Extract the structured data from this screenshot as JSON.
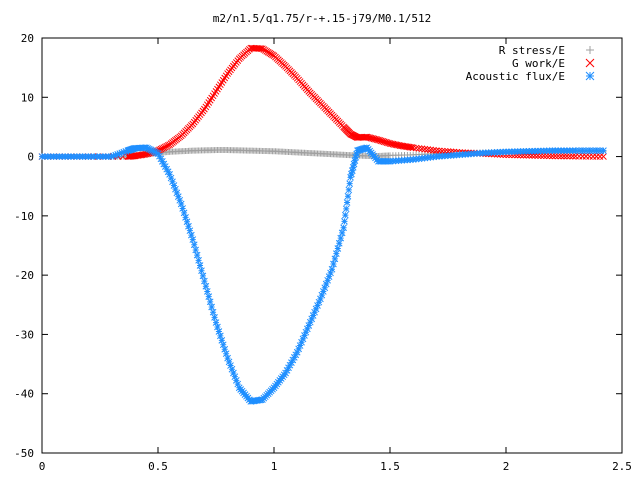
{
  "chart_data": {
    "type": "scatter",
    "title": "m2/n1.5/q1.75/r-+.15-j79/M0.1/512",
    "xlabel": "",
    "ylabel": "",
    "xlim": [
      0,
      2.5
    ],
    "ylim": [
      -50,
      20
    ],
    "x_ticks": [
      {
        "value": 0,
        "label": "0"
      },
      {
        "value": 0.5,
        "label": "0.5"
      },
      {
        "value": 1,
        "label": "1"
      },
      {
        "value": 1.5,
        "label": "1.5"
      },
      {
        "value": 2,
        "label": "2"
      },
      {
        "value": 2.5,
        "label": "2.5"
      }
    ],
    "y_ticks": [
      {
        "value": 20,
        "label": "20"
      },
      {
        "value": 10,
        "label": "10"
      },
      {
        "value": 0,
        "label": "0"
      },
      {
        "value": -10,
        "label": "-10"
      },
      {
        "value": -20,
        "label": "-20"
      },
      {
        "value": -30,
        "label": "-30"
      },
      {
        "value": -40,
        "label": "-40"
      },
      {
        "value": -50,
        "label": "-50"
      }
    ],
    "grid": false,
    "legend": "top-right",
    "series": [
      {
        "name": "R stress/E",
        "marker": "plus",
        "color": "#a0a0a0",
        "points": [
          [
            0.0,
            0
          ],
          [
            0.1,
            0
          ],
          [
            0.2,
            0
          ],
          [
            0.3,
            0
          ],
          [
            0.37,
            0
          ],
          [
            0.4,
            0.15
          ],
          [
            0.45,
            0.4
          ],
          [
            0.5,
            0.6
          ],
          [
            0.55,
            0.8
          ],
          [
            0.6,
            0.9
          ],
          [
            0.65,
            1.0
          ],
          [
            0.7,
            1.05
          ],
          [
            0.75,
            1.1
          ],
          [
            0.8,
            1.1
          ],
          [
            0.85,
            1.05
          ],
          [
            0.9,
            1.0
          ],
          [
            0.95,
            0.95
          ],
          [
            1.0,
            0.9
          ],
          [
            1.05,
            0.8
          ],
          [
            1.1,
            0.7
          ],
          [
            1.15,
            0.6
          ],
          [
            1.2,
            0.5
          ],
          [
            1.25,
            0.4
          ],
          [
            1.3,
            0.3
          ],
          [
            1.35,
            0.2
          ],
          [
            1.4,
            0.1
          ],
          [
            1.45,
            0.1
          ],
          [
            1.5,
            0.2
          ],
          [
            1.6,
            0.3
          ],
          [
            1.7,
            0.5
          ],
          [
            1.8,
            0.6
          ],
          [
            1.9,
            0.7
          ],
          [
            2.0,
            0.8
          ],
          [
            2.1,
            0.9
          ],
          [
            2.2,
            0.9
          ],
          [
            2.3,
            0.9
          ],
          [
            2.42,
            0.9
          ]
        ]
      },
      {
        "name": "G work/E",
        "marker": "cross",
        "color": "#ff0000",
        "points": [
          [
            0.0,
            0
          ],
          [
            0.2,
            0
          ],
          [
            0.37,
            0
          ],
          [
            0.4,
            0.1
          ],
          [
            0.45,
            0.4
          ],
          [
            0.5,
            1.0
          ],
          [
            0.55,
            2.0
          ],
          [
            0.6,
            3.5
          ],
          [
            0.65,
            5.5
          ],
          [
            0.7,
            8.0
          ],
          [
            0.75,
            11.0
          ],
          [
            0.8,
            14.0
          ],
          [
            0.85,
            16.5
          ],
          [
            0.9,
            18.3
          ],
          [
            0.95,
            18.2
          ],
          [
            1.0,
            17.0
          ],
          [
            1.05,
            15.2
          ],
          [
            1.1,
            13.2
          ],
          [
            1.15,
            11.0
          ],
          [
            1.2,
            9.0
          ],
          [
            1.25,
            7.0
          ],
          [
            1.3,
            5.0
          ],
          [
            1.33,
            3.8
          ],
          [
            1.36,
            3.2
          ],
          [
            1.4,
            3.3
          ],
          [
            1.45,
            2.8
          ],
          [
            1.5,
            2.2
          ],
          [
            1.55,
            1.8
          ],
          [
            1.6,
            1.5
          ],
          [
            1.7,
            1.0
          ],
          [
            1.8,
            0.7
          ],
          [
            1.9,
            0.5
          ],
          [
            2.0,
            0.3
          ],
          [
            2.1,
            0.2
          ],
          [
            2.2,
            0.1
          ],
          [
            2.3,
            0.05
          ],
          [
            2.42,
            0
          ]
        ]
      },
      {
        "name": "Acoustic flux/E",
        "marker": "star",
        "color": "#1f8fff",
        "points": [
          [
            0.0,
            0
          ],
          [
            0.1,
            0
          ],
          [
            0.2,
            0
          ],
          [
            0.3,
            0
          ],
          [
            0.37,
            1.0
          ],
          [
            0.4,
            1.4
          ],
          [
            0.45,
            1.5
          ],
          [
            0.5,
            0.5
          ],
          [
            0.55,
            -3.0
          ],
          [
            0.6,
            -8.0
          ],
          [
            0.65,
            -14.0
          ],
          [
            0.7,
            -21.0
          ],
          [
            0.75,
            -28.0
          ],
          [
            0.8,
            -34.0
          ],
          [
            0.85,
            -39.0
          ],
          [
            0.9,
            -41.3
          ],
          [
            0.95,
            -41.0
          ],
          [
            1.0,
            -39.0
          ],
          [
            1.05,
            -36.5
          ],
          [
            1.1,
            -33.0
          ],
          [
            1.15,
            -28.5
          ],
          [
            1.2,
            -24.0
          ],
          [
            1.25,
            -19.0
          ],
          [
            1.3,
            -12.0
          ],
          [
            1.33,
            -3.5
          ],
          [
            1.36,
            1.0
          ],
          [
            1.4,
            1.5
          ],
          [
            1.45,
            -0.8
          ],
          [
            1.5,
            -0.8
          ],
          [
            1.6,
            -0.5
          ],
          [
            1.7,
            0
          ],
          [
            1.8,
            0.3
          ],
          [
            1.9,
            0.6
          ],
          [
            2.0,
            0.8
          ],
          [
            2.1,
            0.9
          ],
          [
            2.2,
            1.0
          ],
          [
            2.3,
            1.0
          ],
          [
            2.42,
            1.0
          ]
        ]
      }
    ]
  }
}
